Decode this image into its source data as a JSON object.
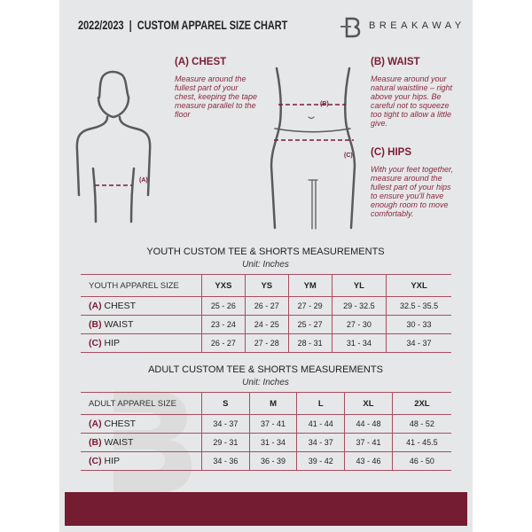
{
  "header": {
    "title": "2022/2023  |  CUSTOM APPAREL SIZE CHART",
    "brand": "BREAKAWAY",
    "logo_letter": "B"
  },
  "guide": {
    "chest": {
      "heading": "(A) CHEST",
      "text": "Measure around the fullest part of your chest, keeping the tape measure parallel to the floor",
      "marker": "(A)"
    },
    "waist": {
      "heading": "(B) WAIST",
      "text": "Measure around your natural waistline – right above your hips. Be careful not to squeeze too tight to allow a little give.",
      "marker": "(B)"
    },
    "hips": {
      "heading": "(C) HIPS",
      "text": "With your feet together, measure around the fullest part of your hips to ensure you'll have enough room to move comfortably.",
      "marker": "(C)"
    }
  },
  "youth": {
    "title": "YOUTH CUSTOM TEE & SHORTS MEASUREMENTS",
    "unit": "Unit: Inches",
    "header": [
      "YOUTH APPAREL SIZE",
      "YXS",
      "YS",
      "YM",
      "YL",
      "YXL"
    ],
    "rows": [
      {
        "code": "(A)",
        "label": "CHEST",
        "values": [
          "25 - 26",
          "26 - 27",
          "27 - 29",
          "29 - 32.5",
          "32.5 - 35.5"
        ]
      },
      {
        "code": "(B)",
        "label": "WAIST",
        "values": [
          "23 - 24",
          "24 - 25",
          "25 - 27",
          "27 - 30",
          "30 - 33"
        ]
      },
      {
        "code": "(C)",
        "label": "HIP",
        "values": [
          "26 - 27",
          "27 - 28",
          "28 - 31",
          "31 - 34",
          "34 - 37"
        ]
      }
    ]
  },
  "adult": {
    "title": "ADULT CUSTOM TEE & SHORTS MEASUREMENTS",
    "unit": "Unit: Inches",
    "header": [
      "ADULT APPAREL SIZE",
      "S",
      "M",
      "L",
      "XL",
      "2XL"
    ],
    "rows": [
      {
        "code": "(A)",
        "label": "CHEST",
        "values": [
          "34 - 37",
          "37 - 41",
          "41 - 44",
          "44 - 48",
          "48 - 52"
        ]
      },
      {
        "code": "(B)",
        "label": "WAIST",
        "values": [
          "29 - 31",
          "31 - 34",
          "34 - 37",
          "37 - 41",
          "41 - 45.5"
        ]
      },
      {
        "code": "(C)",
        "label": "HIP",
        "values": [
          "34 - 36",
          "36 - 39",
          "39 - 42",
          "43 - 46",
          "46 - 50"
        ]
      }
    ]
  },
  "colors": {
    "accent": "#731c32",
    "panel": "#e6e7e8"
  }
}
